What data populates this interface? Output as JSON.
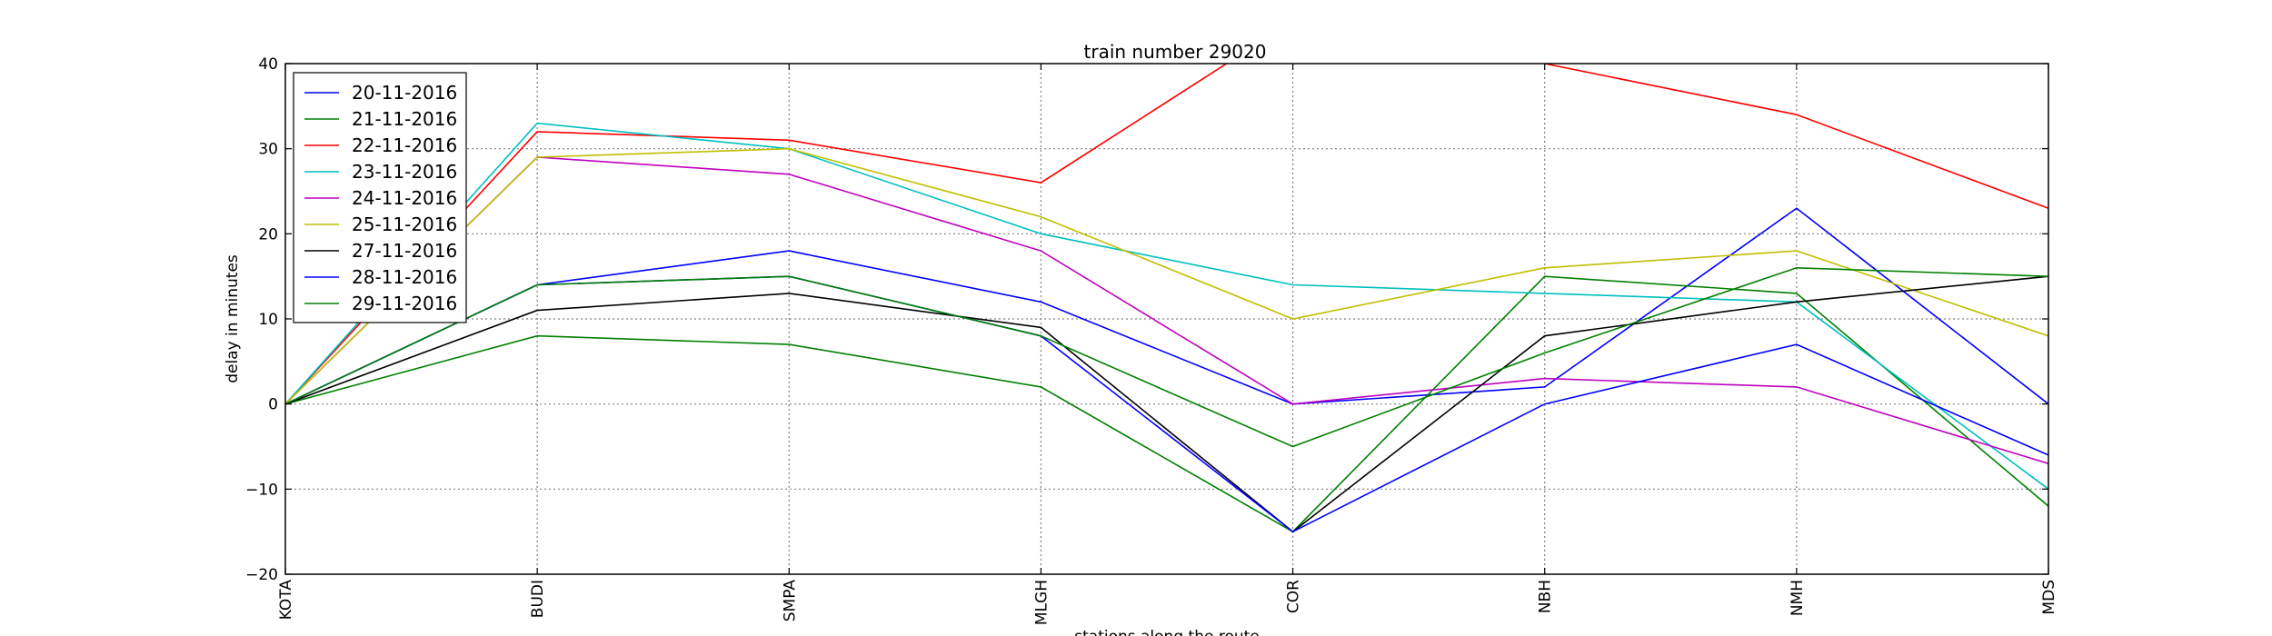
{
  "chart_data": {
    "type": "line",
    "title": "train number 29020",
    "xlabel": "stations along the route",
    "ylabel": "delay in minutes",
    "categories": [
      "KOTA",
      "BUDI",
      "SMPA",
      "MLGH",
      "COR",
      "NBH",
      "NMH",
      "MDS"
    ],
    "ylim": [
      -20,
      40
    ],
    "yticks": [
      -20,
      -10,
      0,
      10,
      20,
      30,
      40
    ],
    "ytick_labels": [
      "−20",
      "−10",
      "0",
      "10",
      "20",
      "30",
      "40"
    ],
    "grid": true,
    "legend_position": "top-left",
    "series": [
      {
        "name": "20-11-2016",
        "color": "#0000ff",
        "values": [
          0,
          14,
          18,
          12,
          0,
          2,
          23,
          0
        ]
      },
      {
        "name": "21-11-2016",
        "color": "#008000",
        "values": [
          0,
          8,
          7,
          2,
          -15,
          15,
          13,
          -12
        ]
      },
      {
        "name": "22-11-2016",
        "color": "#ff0000",
        "values": [
          0,
          32,
          31,
          26,
          45,
          40,
          34,
          23
        ]
      },
      {
        "name": "23-11-2016",
        "color": "#00bfbf",
        "values": [
          0,
          33,
          30,
          20,
          14,
          13,
          12,
          -10
        ]
      },
      {
        "name": "24-11-2016",
        "color": "#bf00bf",
        "values": [
          0,
          29,
          27,
          18,
          0,
          3,
          2,
          -7
        ]
      },
      {
        "name": "25-11-2016",
        "color": "#bfbf00",
        "values": [
          0,
          29,
          30,
          22,
          10,
          16,
          18,
          8
        ]
      },
      {
        "name": "27-11-2016",
        "color": "#000000",
        "values": [
          0,
          11,
          13,
          9,
          -15,
          8,
          12,
          15
        ]
      },
      {
        "name": "28-11-2016",
        "color": "#0000ff",
        "values": [
          0,
          14,
          15,
          8,
          -15,
          0,
          7,
          -6
        ]
      },
      {
        "name": "29-11-2016",
        "color": "#008000",
        "values": [
          0,
          14,
          15,
          8,
          -5,
          6,
          16,
          15
        ]
      }
    ]
  }
}
